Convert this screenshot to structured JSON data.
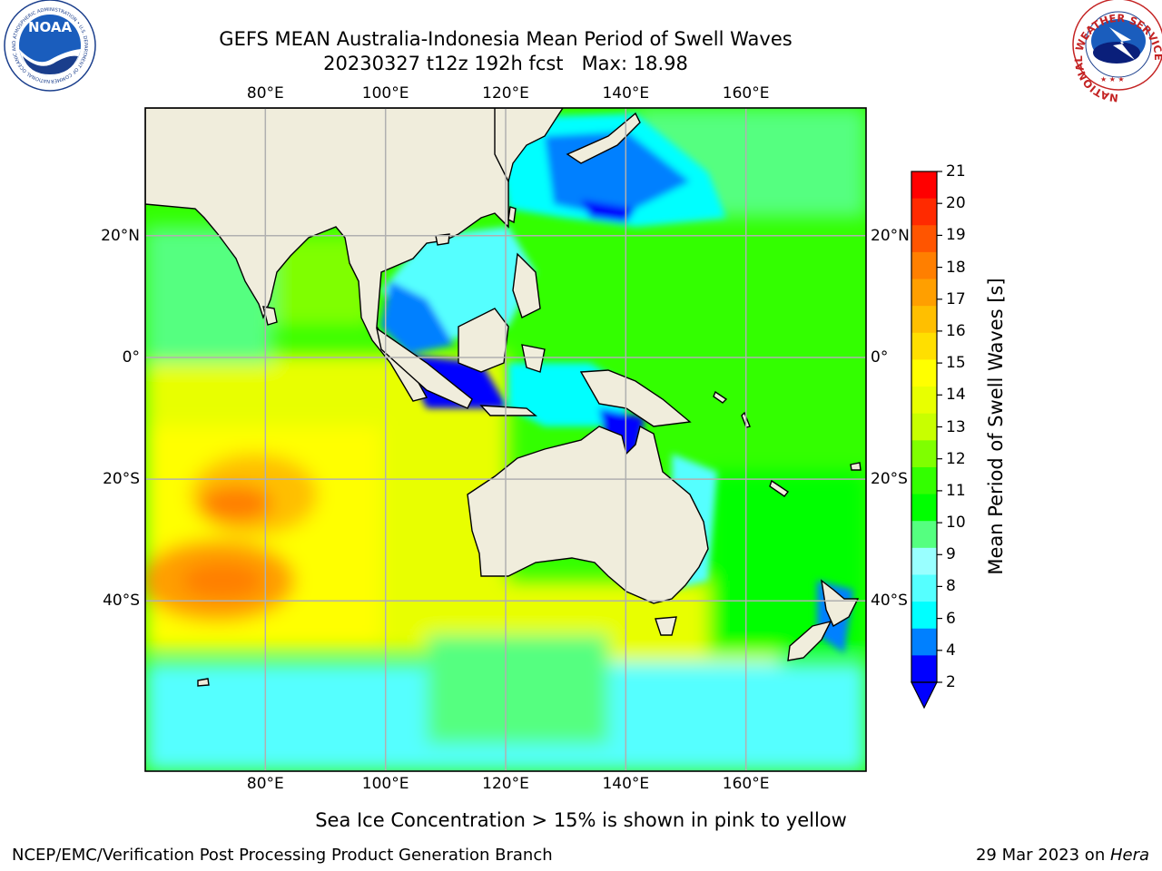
{
  "title": {
    "line1": "GEFS MEAN Australia-Indonesia Mean Period of Swell Waves",
    "line2": "20230327 t12z 192h fcst   Max: 18.98"
  },
  "axes": {
    "lon_labels": [
      "80°E",
      "100°E",
      "120°E",
      "140°E",
      "160°E"
    ],
    "lat_labels": [
      "20°N",
      "0°",
      "20°S",
      "40°S"
    ],
    "lon_values": [
      80,
      100,
      120,
      140,
      160
    ],
    "lat_values": [
      20,
      0,
      -20,
      -40
    ],
    "lon_range": [
      60,
      180
    ],
    "lat_range": [
      -68,
      41
    ],
    "grid": true
  },
  "colorbar": {
    "label": "Mean Period of Swell Waves [s]",
    "ticks": [
      "21",
      "20",
      "19",
      "18",
      "17",
      "16",
      "15",
      "14",
      "13",
      "12",
      "11",
      "10",
      "9",
      "8",
      "6",
      "4",
      "2"
    ],
    "extend": "min",
    "colors": [
      "#ff0000",
      "#ff2a00",
      "#ff5500",
      "#ff7f00",
      "#ff9f00",
      "#ffbf00",
      "#ffdf00",
      "#ffff00",
      "#e8ff00",
      "#c8ff00",
      "#7fff00",
      "#33ff00",
      "#00ff00",
      "#55ff80",
      "#99ffff",
      "#55ffff",
      "#00ffff",
      "#0080ff",
      "#0000ff"
    ]
  },
  "colors": {
    "land": "#f0eddc",
    "grid": "#b0b0b0",
    "ice_note_color": "#ff88cc"
  },
  "logos": {
    "noaa": "NOAA",
    "noaa_ring": "NATIONAL OCEANIC AND ATMOSPHERIC ADMINISTRATION • U.S. DEPARTMENT OF COMMERCE",
    "nws_ring": "NATIONAL WEATHER SERVICE"
  },
  "footer": {
    "ice_note": "Sea Ice Concentration > 15% is shown in pink to yellow",
    "left": "NCEP/EMC/Verification Post Processing Product Generation Branch",
    "date": "29 Mar 2023 on ",
    "host": "Hera"
  }
}
